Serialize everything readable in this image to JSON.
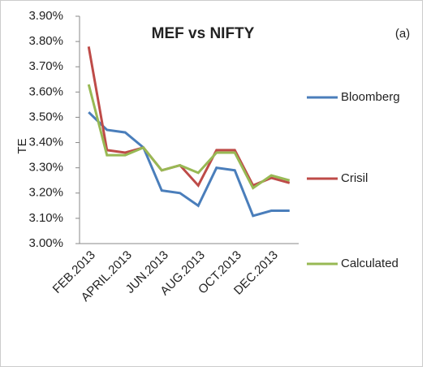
{
  "chart_data": {
    "type": "line",
    "title": "MEF vs NIFTY",
    "annotation": "(a)",
    "y_label": "TE",
    "categories": [
      "FEB.2013",
      null,
      "APRIL.2013",
      null,
      "JUN.2013",
      null,
      "AUG.2013",
      null,
      "OCT.2013",
      null,
      "DEC.2013",
      null
    ],
    "series": [
      {
        "name": "Bloomberg",
        "color": "#4a7ebb",
        "values": [
          3.52,
          3.45,
          3.44,
          3.38,
          3.21,
          3.2,
          3.15,
          3.3,
          3.29,
          3.11,
          3.13,
          3.13
        ]
      },
      {
        "name": "Crisil",
        "color": "#be4b48",
        "values": [
          3.78,
          3.37,
          3.36,
          3.38,
          3.29,
          3.31,
          3.23,
          3.37,
          3.37,
          3.23,
          3.26,
          3.24
        ]
      },
      {
        "name": "Calculated",
        "color": "#98b954",
        "values": [
          3.63,
          3.35,
          3.35,
          3.38,
          3.29,
          3.31,
          3.28,
          3.36,
          3.36,
          3.22,
          3.27,
          3.25
        ]
      }
    ],
    "ylim": [
      3.0,
      3.9
    ],
    "yticks": [
      {
        "value": 3.0,
        "label": "3.00%"
      },
      {
        "value": 3.1,
        "label": "3.10%"
      },
      {
        "value": 3.2,
        "label": "3.20%"
      },
      {
        "value": 3.3,
        "label": "3.30%"
      },
      {
        "value": 3.4,
        "label": "3.40%"
      },
      {
        "value": 3.5,
        "label": "3.50%"
      },
      {
        "value": 3.6,
        "label": "3.60%"
      },
      {
        "value": 3.7,
        "label": "3.70%"
      },
      {
        "value": 3.8,
        "label": "3.80%"
      },
      {
        "value": 3.9,
        "label": "3.90%"
      }
    ],
    "grid": false
  }
}
